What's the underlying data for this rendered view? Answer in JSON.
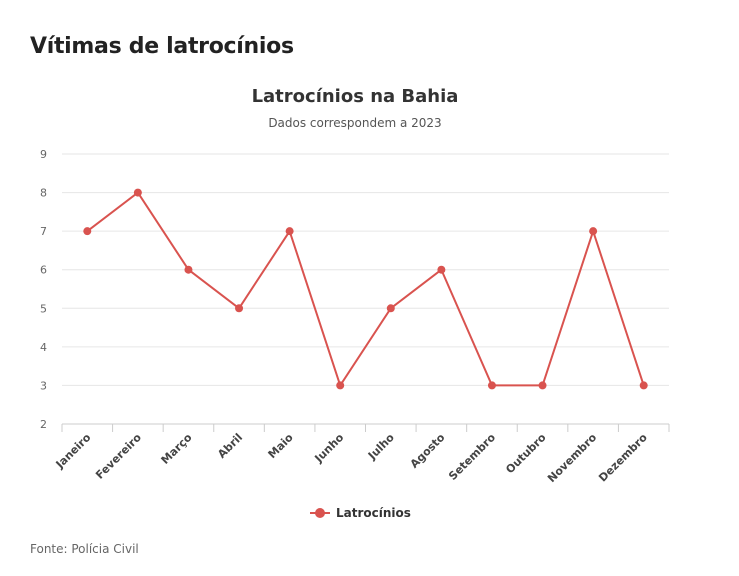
{
  "header": {
    "title": "Vítimas de latrocínios"
  },
  "source": "Fonte: Polícia Civil",
  "colors": {
    "series": "#d9534f",
    "grid": "#e6e6e6",
    "axis": "#cccccc"
  },
  "chart_data": {
    "type": "line",
    "title": "Latrocínios na Bahia",
    "subtitle": "Dados correspondem a 2023",
    "xlabel": "",
    "ylabel": "",
    "categories": [
      "Janeiro",
      "Fevereiro",
      "Março",
      "Abril",
      "Maio",
      "Junho",
      "Julho",
      "Agosto",
      "Setembro",
      "Outubro",
      "Novembro",
      "Dezembro"
    ],
    "series": [
      {
        "name": "Latrocínios",
        "values": [
          7,
          8,
          6,
          5,
          7,
          3,
          5,
          6,
          3,
          3,
          7,
          3
        ]
      }
    ],
    "ylim": [
      2,
      9
    ],
    "yticks": [
      2,
      3,
      4,
      5,
      6,
      7,
      8,
      9
    ],
    "grid": true,
    "legend": "bottom-center"
  }
}
